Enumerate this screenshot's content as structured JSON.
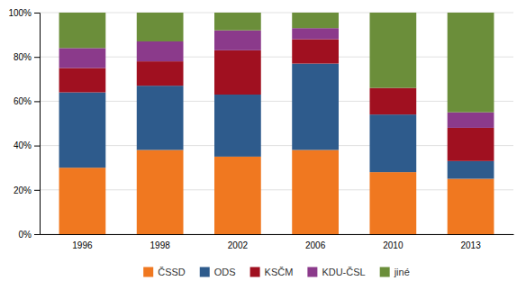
{
  "chart_data": {
    "type": "bar",
    "stacked": true,
    "categories": [
      "1996",
      "1998",
      "2002",
      "2006",
      "2010",
      "2013"
    ],
    "series": [
      {
        "name": "ČSSD",
        "color": "#F07820",
        "values": [
          30,
          38,
          35,
          38,
          28,
          25
        ]
      },
      {
        "name": "ODS",
        "color": "#2E5B8C",
        "values": [
          34,
          29,
          28,
          39,
          26,
          8
        ]
      },
      {
        "name": "KSČM",
        "color": "#A01020",
        "values": [
          11,
          11,
          20,
          11,
          12,
          15
        ]
      },
      {
        "name": "KDU-ČSL",
        "color": "#8B3A8B",
        "values": [
          9,
          9,
          9,
          5,
          0,
          7
        ]
      },
      {
        "name": "jiné",
        "color": "#6B8E3A",
        "values": [
          16,
          13,
          8,
          7,
          34,
          45
        ]
      }
    ],
    "ylim": [
      0,
      100
    ],
    "yticks": [
      {
        "value": 0,
        "label": "0%"
      },
      {
        "value": 20,
        "label": "20%"
      },
      {
        "value": 40,
        "label": "40%"
      },
      {
        "value": 60,
        "label": "60%"
      },
      {
        "value": 80,
        "label": "80%"
      },
      {
        "value": 100,
        "label": "100%"
      }
    ],
    "grid": true,
    "legend": "bottom"
  }
}
